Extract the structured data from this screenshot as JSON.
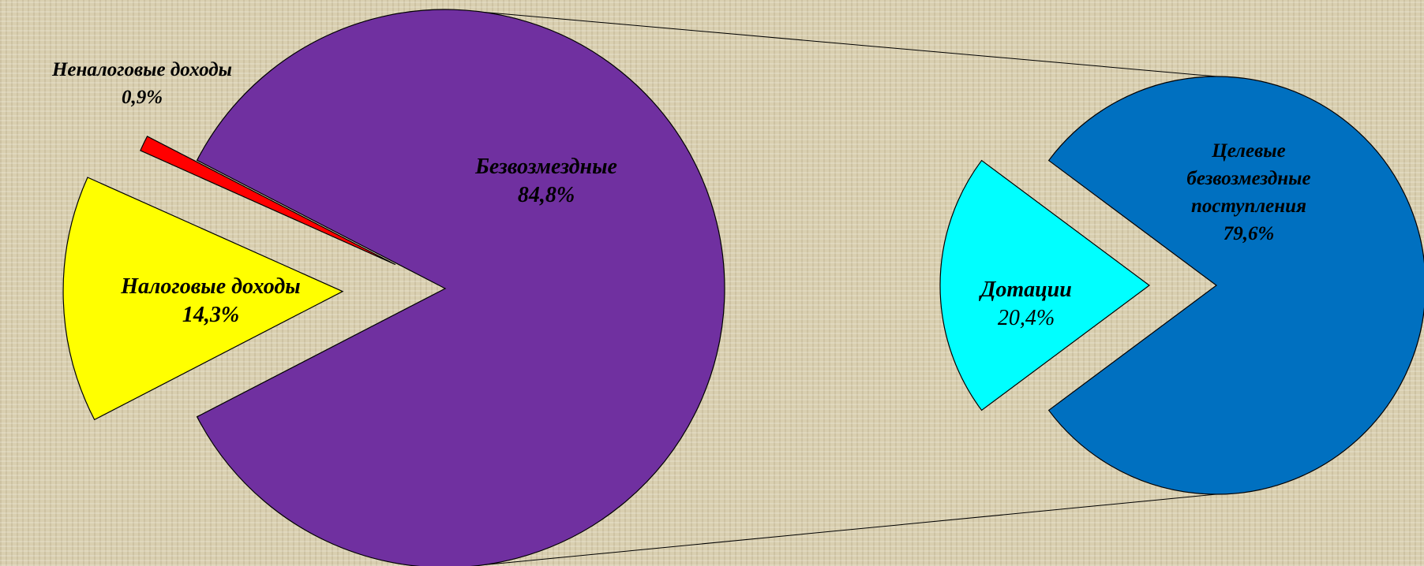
{
  "chart_data": [
    {
      "type": "pie",
      "categories": [
        "Безвозмездные",
        "Налоговые доходы",
        "Неналоговые доходы"
      ],
      "values": [
        84.8,
        14.3,
        0.9
      ],
      "value_labels": [
        "84,8%",
        "14,3%",
        "0,9%"
      ],
      "colors": [
        "#7030a0",
        "#ffff00",
        "#ff0000"
      ]
    },
    {
      "type": "pie",
      "categories": [
        "Целевые безвозмездные\nпоступления",
        "Дотации"
      ],
      "values": [
        79.6,
        20.4
      ],
      "value_labels": [
        "79,6%",
        "20,4%"
      ],
      "colors": [
        "#0070c0",
        "#00ffff"
      ]
    }
  ]
}
